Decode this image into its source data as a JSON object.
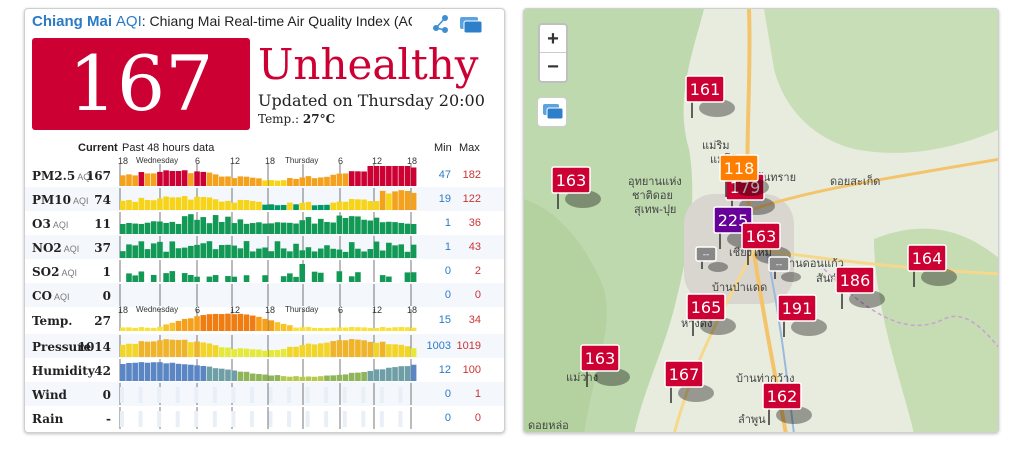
{
  "header": {
    "city": "Chiang Mai",
    "aqi_label": "AQI",
    "title": ": Chiang Mai Real-time Air Quality Index (AQ",
    "share_icon": "share-icon",
    "layers_icon": "layers-icon"
  },
  "current": {
    "aqi": "167",
    "status": "Unhealthy",
    "updated": "Updated on Thursday 20:00",
    "temp_label": "Temp.: ",
    "temp_value": "27°C",
    "status_color": "#cc0033"
  },
  "table": {
    "current_label": "Current",
    "past_label": "Past 48 hours data",
    "min_label": "Min",
    "max_label": "Max",
    "axis_top": [
      "18",
      "Wednesday",
      "6",
      "12",
      "18",
      "Thursday",
      "6",
      "12",
      "18"
    ],
    "axis_temp": [
      "18",
      "Wednesday",
      "6",
      "12",
      "18",
      "Thursday",
      "6",
      "12",
      "18"
    ],
    "rows": [
      {
        "label": "PM2.5",
        "unit": "AQI",
        "value": "167",
        "min": "47",
        "max": "182"
      },
      {
        "label": "PM10",
        "unit": "AQI",
        "value": "74",
        "min": "19",
        "max": "122"
      },
      {
        "label": "O3",
        "unit": "AQI",
        "value": "11",
        "min": "1",
        "max": "36"
      },
      {
        "label": "NO2",
        "unit": "AQI",
        "value": "37",
        "min": "1",
        "max": "43"
      },
      {
        "label": "SO2",
        "unit": "AQI",
        "value": "1",
        "min": "0",
        "max": "2"
      },
      {
        "label": "CO",
        "unit": "AQI",
        "value": "0",
        "min": "0",
        "max": "0"
      },
      {
        "label": "Temp.",
        "unit": "",
        "value": "27",
        "min": "15",
        "max": "34"
      },
      {
        "label": "Pressure",
        "unit": "",
        "value": "1014",
        "min": "1003",
        "max": "1019"
      },
      {
        "label": "Humidity",
        "unit": "",
        "value": "42",
        "min": "12",
        "max": "100"
      },
      {
        "label": "Wind",
        "unit": "",
        "value": "0",
        "min": "0",
        "max": "1"
      },
      {
        "label": "Rain",
        "unit": "",
        "value": "-",
        "min": "0",
        "max": "0"
      }
    ]
  },
  "map": {
    "zoom_in": "+",
    "zoom_out": "−",
    "markers": [
      {
        "value": "161",
        "color": "#cc0033"
      },
      {
        "value": "163",
        "color": "#cc0033"
      },
      {
        "value": "179",
        "color": "#cc0033"
      },
      {
        "value": "225",
        "color": "#660099"
      },
      {
        "value": "163",
        "color": "#cc0033"
      },
      {
        "value": "164",
        "color": "#cc0033"
      },
      {
        "value": "186",
        "color": "#cc0033"
      },
      {
        "value": "165",
        "color": "#cc0033"
      },
      {
        "value": "191",
        "color": "#cc0033"
      },
      {
        "value": "163",
        "color": "#cc0033"
      },
      {
        "value": "167",
        "color": "#cc0033"
      },
      {
        "value": "162",
        "color": "#cc0033"
      },
      {
        "value": "118",
        "color": "#ff7e00"
      },
      {
        "value": "--",
        "color": "#888888"
      },
      {
        "value": "--",
        "color": "#888888"
      }
    ],
    "place_labels": [
      "แม่ริม",
      "แม่โจ้",
      "อุทยานแห่ง",
      "ชาติดอย",
      "สุเทพ-ปุย",
      "สันทราย",
      "ดอยสะเก็ด",
      "เชียงใหม่",
      "บ้านดอนแก้ว",
      "สันกำแพง",
      "บ้านป่าแดด",
      "หางดง",
      "แม่วาง",
      "บ้านท่ากว้าง",
      "ลำพูน",
      "ดอยหล่อ"
    ]
  }
}
